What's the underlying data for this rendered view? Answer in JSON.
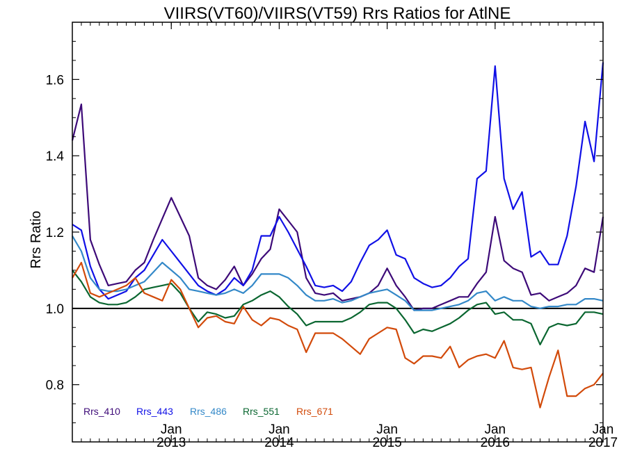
{
  "chart_data": {
    "type": "line",
    "title": "VIIRS(VT60)/VIIRS(VT59)  Rrs Ratios for AtlNE",
    "ylabel": "Rrs Ratio",
    "xlabel": "",
    "ylim": [
      0.65,
      1.75
    ],
    "yticks": [
      0.8,
      1.0,
      1.2,
      1.4,
      1.6
    ],
    "ytick_labels": [
      "0.8",
      "1.0",
      "1.2",
      "1.4",
      "1.6"
    ],
    "xlim": [
      "2012-02",
      "2017-01"
    ],
    "xticks": [
      {
        "month": "2013-01",
        "line1": "Jan",
        "line2": "2013"
      },
      {
        "month": "2014-01",
        "line1": "Jan",
        "line2": "2014"
      },
      {
        "month": "2015-01",
        "line1": "Jan",
        "line2": "2015"
      },
      {
        "month": "2016-01",
        "line1": "Jan",
        "line2": "2016"
      },
      {
        "month": "2017-01",
        "line1": "Jan",
        "line2": "2017"
      }
    ],
    "reference_line": 1.0,
    "legend_position": "bottom-left",
    "x": [
      "2012-02",
      "2012-03",
      "2012-04",
      "2012-05",
      "2012-06",
      "2012-07",
      "2012-08",
      "2012-09",
      "2012-10",
      "2012-11",
      "2012-12",
      "2013-01",
      "2013-02",
      "2013-03",
      "2013-04",
      "2013-05",
      "2013-06",
      "2013-07",
      "2013-08",
      "2013-09",
      "2013-10",
      "2013-11",
      "2013-12",
      "2014-01",
      "2014-02",
      "2014-03",
      "2014-04",
      "2014-05",
      "2014-06",
      "2014-07",
      "2014-08",
      "2014-09",
      "2014-10",
      "2014-11",
      "2014-12",
      "2015-01",
      "2015-02",
      "2015-03",
      "2015-04",
      "2015-05",
      "2015-06",
      "2015-07",
      "2015-08",
      "2015-09",
      "2015-10",
      "2015-11",
      "2015-12",
      "2016-01",
      "2016-02",
      "2016-03",
      "2016-04",
      "2016-05",
      "2016-06",
      "2016-07",
      "2016-08",
      "2016-09",
      "2016-10",
      "2016-11",
      "2016-12",
      "2017-01"
    ],
    "series": [
      {
        "name": "Rrs_410",
        "color": "#3d0a78",
        "values": [
          1.44,
          1.535,
          1.18,
          1.115,
          1.06,
          1.065,
          1.07,
          1.1,
          1.12,
          1.18,
          1.235,
          1.29,
          1.24,
          1.19,
          1.08,
          1.06,
          1.05,
          1.075,
          1.11,
          1.06,
          1.09,
          1.13,
          1.155,
          1.26,
          1.23,
          1.2,
          1.08,
          1.04,
          1.035,
          1.04,
          1.02,
          1.025,
          1.03,
          1.04,
          1.06,
          1.105,
          1.06,
          1.03,
          0.995,
          1.0,
          1.0,
          1.01,
          1.02,
          1.03,
          1.03,
          1.065,
          1.095,
          1.24,
          1.125,
          1.105,
          1.095,
          1.035,
          1.04,
          1.02,
          1.03,
          1.04,
          1.06,
          1.105,
          1.095,
          1.24
        ]
      },
      {
        "name": "Rrs_443",
        "color": "#1010e6",
        "values": [
          1.22,
          1.205,
          1.11,
          1.05,
          1.025,
          1.035,
          1.045,
          1.08,
          1.1,
          1.14,
          1.18,
          1.15,
          1.12,
          1.09,
          1.06,
          1.045,
          1.035,
          1.05,
          1.08,
          1.06,
          1.1,
          1.19,
          1.19,
          1.24,
          1.2,
          1.155,
          1.11,
          1.06,
          1.055,
          1.06,
          1.045,
          1.07,
          1.12,
          1.165,
          1.18,
          1.205,
          1.14,
          1.13,
          1.08,
          1.065,
          1.055,
          1.06,
          1.08,
          1.11,
          1.13,
          1.34,
          1.36,
          1.635,
          1.34,
          1.26,
          1.305,
          1.135,
          1.15,
          1.115,
          1.115,
          1.19,
          1.32,
          1.49,
          1.385,
          1.645
        ]
      },
      {
        "name": "Rrs_486",
        "color": "#3388c8",
        "values": [
          1.19,
          1.15,
          1.08,
          1.05,
          1.045,
          1.045,
          1.05,
          1.06,
          1.07,
          1.095,
          1.12,
          1.1,
          1.08,
          1.05,
          1.045,
          1.04,
          1.035,
          1.04,
          1.05,
          1.04,
          1.06,
          1.09,
          1.09,
          1.09,
          1.08,
          1.06,
          1.035,
          1.02,
          1.02,
          1.025,
          1.015,
          1.02,
          1.03,
          1.04,
          1.045,
          1.05,
          1.035,
          1.02,
          0.995,
          0.995,
          0.995,
          1.0,
          1.005,
          1.01,
          1.02,
          1.04,
          1.045,
          1.02,
          1.03,
          1.02,
          1.02,
          1.005,
          1.0,
          1.005,
          1.005,
          1.01,
          1.01,
          1.025,
          1.025,
          1.02
        ]
      },
      {
        "name": "Rrs_551",
        "color": "#0a6630",
        "values": [
          1.1,
          1.07,
          1.03,
          1.015,
          1.01,
          1.01,
          1.015,
          1.03,
          1.05,
          1.055,
          1.06,
          1.065,
          1.04,
          1.0,
          0.965,
          0.99,
          0.985,
          0.975,
          0.98,
          1.01,
          1.02,
          1.035,
          1.045,
          1.03,
          1.005,
          0.985,
          0.955,
          0.965,
          0.965,
          0.965,
          0.965,
          0.975,
          0.99,
          1.01,
          1.015,
          1.015,
          1.0,
          0.97,
          0.935,
          0.945,
          0.94,
          0.95,
          0.96,
          0.975,
          0.995,
          1.01,
          1.015,
          0.985,
          0.99,
          0.97,
          0.97,
          0.96,
          0.905,
          0.95,
          0.96,
          0.955,
          0.96,
          0.99,
          0.99,
          0.985
        ]
      },
      {
        "name": "Rrs_671",
        "color": "#d24a0a",
        "values": [
          1.08,
          1.12,
          1.04,
          1.03,
          1.04,
          1.05,
          1.06,
          1.08,
          1.04,
          1.03,
          1.02,
          1.075,
          1.05,
          1.0,
          0.95,
          0.975,
          0.98,
          0.965,
          0.96,
          1.005,
          0.97,
          0.955,
          0.975,
          0.97,
          0.955,
          0.945,
          0.885,
          0.935,
          0.935,
          0.935,
          0.92,
          0.9,
          0.88,
          0.92,
          0.935,
          0.95,
          0.945,
          0.87,
          0.855,
          0.875,
          0.875,
          0.87,
          0.9,
          0.845,
          0.865,
          0.875,
          0.88,
          0.87,
          0.915,
          0.845,
          0.84,
          0.845,
          0.74,
          0.82,
          0.89,
          0.77,
          0.77,
          0.79,
          0.8,
          0.83
        ]
      }
    ]
  }
}
